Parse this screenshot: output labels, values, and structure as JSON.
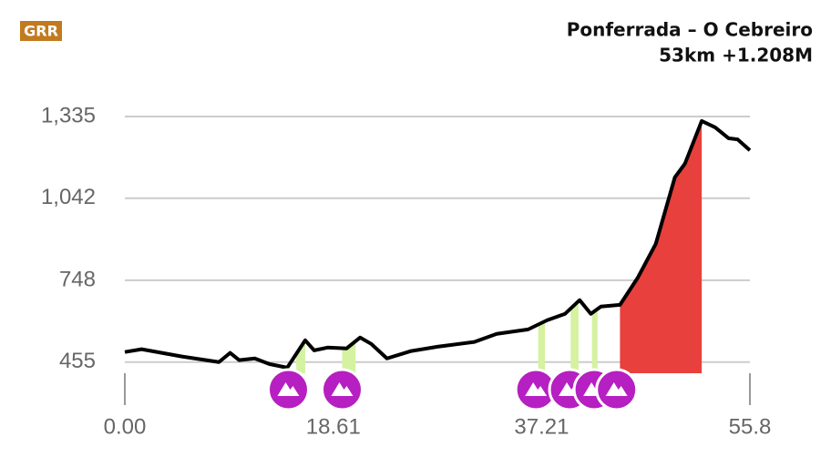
{
  "logo": "GRR",
  "chart_data": {
    "type": "line",
    "title": "Ponferrada – O Cebreiro",
    "subtitle": "53km +1.208M",
    "x": [
      0,
      1.5,
      5.1,
      8.4,
      9.4,
      10.2,
      11.6,
      12.9,
      14.5,
      16.1,
      16.9,
      18.1,
      19.8,
      21.0,
      22.0,
      23.4,
      25.5,
      27.9,
      31.2,
      33.2,
      36.0,
      37.7,
      39.3,
      40.6,
      41.6,
      42.5,
      44.2,
      45.8,
      47.4,
      49.1,
      50.0,
      51.5,
      52.7,
      53.9,
      54.7,
      55.8
    ],
    "series": [
      {
        "color": "#000000",
        "values": [
          491,
          501,
          475,
          455,
          488,
          462,
          468,
          448,
          435,
          533,
          497,
          507,
          504,
          543,
          520,
          468,
          494,
          510,
          527,
          556,
          572,
          605,
          628,
          677,
          628,
          654,
          660,
          758,
          879,
          1117,
          1166,
          1319,
          1296,
          1257,
          1253,
          1214
        ]
      }
    ],
    "climbs": [
      {
        "start": 15.3,
        "end": 16.1,
        "color": "#d4f2a0"
      },
      {
        "start": 19.4,
        "end": 20.6,
        "color": "#d4f2a0"
      },
      {
        "start": 36.9,
        "end": 37.5,
        "color": "#d4f2a0"
      },
      {
        "start": 39.8,
        "end": 40.5,
        "color": "#d4f2a0"
      },
      {
        "start": 41.7,
        "end": 42.2,
        "color": "#d4f2a0"
      },
      {
        "start": 44.2,
        "end": 51.5,
        "color": "#e8403c"
      }
    ],
    "markers": {
      "x": [
        14.6,
        19.4,
        36.7,
        39.7,
        41.9,
        43.9
      ],
      "color": "#b61fc1"
    },
    "xlim": [
      0,
      55.8
    ],
    "ylim": [
      415,
      1335
    ],
    "xticks": [
      {
        "value": 0,
        "label": "0.00"
      },
      18.61,
      37.21,
      55.8
    ],
    "yticks": [
      {
        "value": 455,
        "label": "455"
      },
      {
        "value": 748,
        "label": "748"
      },
      {
        "value": 1042,
        "label": "1,042"
      },
      {
        "value": 1335,
        "label": "1,335"
      }
    ],
    "grid": true
  }
}
